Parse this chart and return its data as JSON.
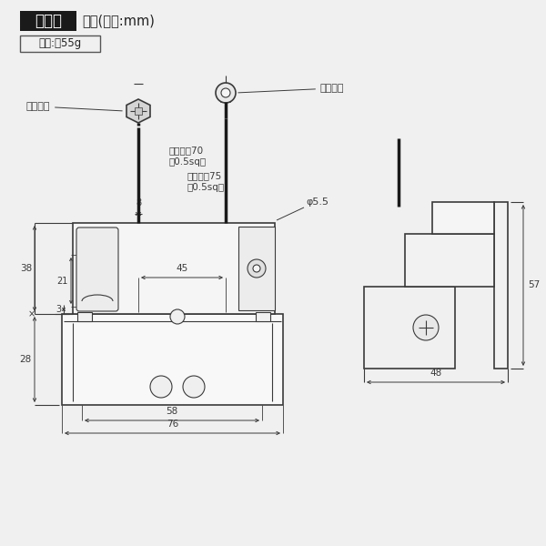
{
  "title": "寸　法",
  "subtitle": "概寸(単位:mm)",
  "weight_text": "重量:約55g",
  "bg_color": "#f0f0f0",
  "line_color": "#3a3a3a",
  "title_bg": "#1a1a1a",
  "title_fg": "#ffffff",
  "label_atsu": "圧着端子",
  "label_maru": "丸型端子",
  "label_cord70": "コード長70\n（0.5sq）",
  "label_cord75": "コード長75\n（0.5sq）",
  "label_phi": "φ5.5",
  "dim_3": "3",
  "dim_8": "8",
  "dim_21": "21",
  "dim_38": "38",
  "dim_28": "28",
  "dim_45": "45",
  "dim_58": "58",
  "dim_76": "76",
  "dim_48": "48",
  "dim_57": "57"
}
